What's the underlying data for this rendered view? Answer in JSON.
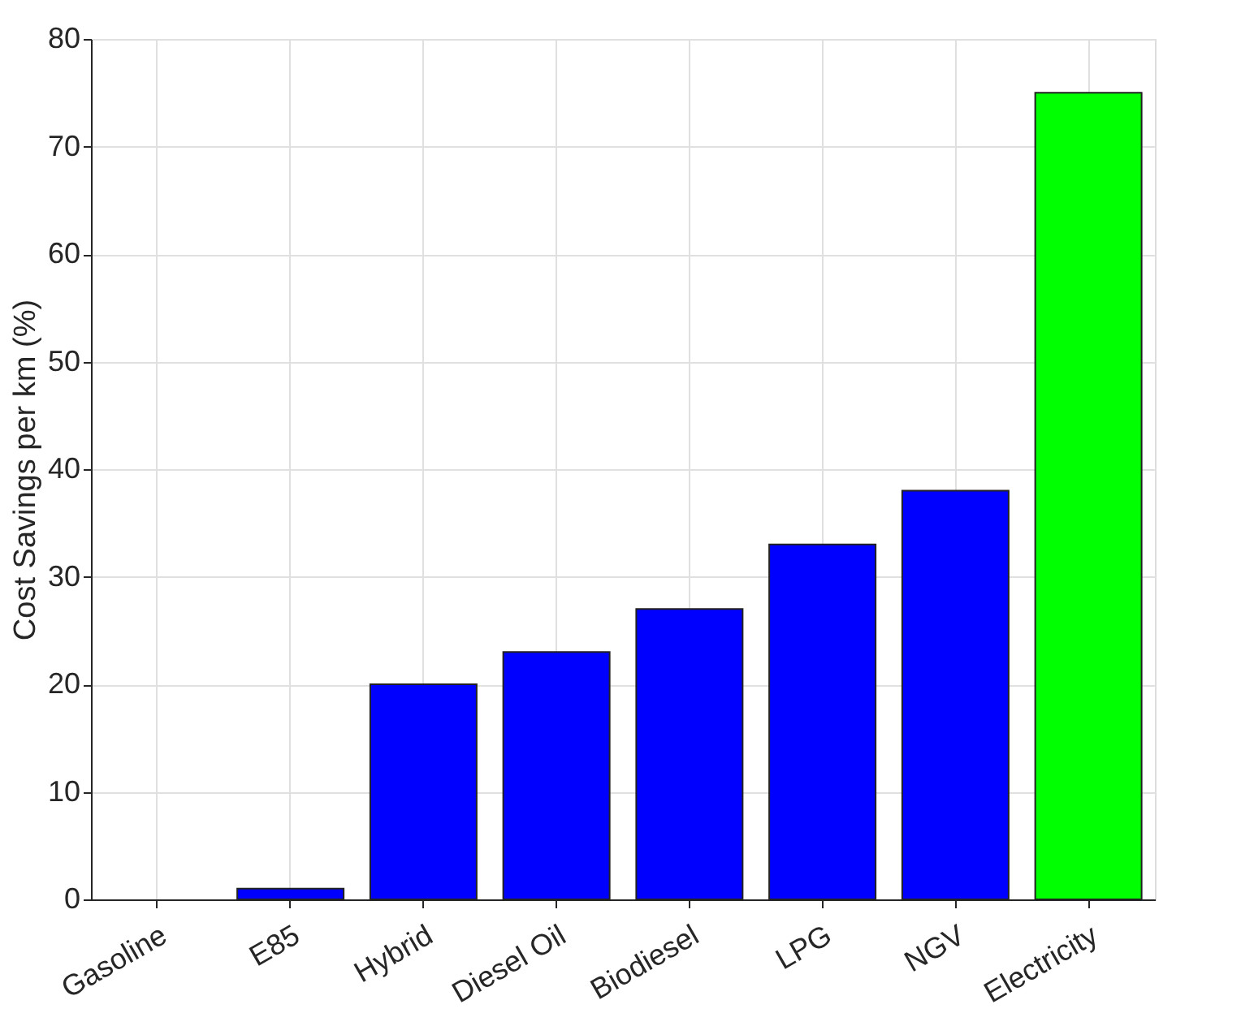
{
  "chart_data": {
    "type": "bar",
    "ylabel": "Cost Savings per km (%)",
    "categories": [
      "Gasoline",
      "E85",
      "Hybrid",
      "Diesel Oil",
      "Biodiesel",
      "LPG",
      "NGV",
      "Electricity"
    ],
    "values": [
      0,
      1,
      20,
      23,
      27,
      33,
      38,
      75
    ],
    "colors": [
      "#0000ff",
      "#0000ff",
      "#0000ff",
      "#0000ff",
      "#0000ff",
      "#0000ff",
      "#0000ff",
      "#00ff00"
    ],
    "ylim": [
      0,
      80
    ],
    "yticks": [
      0,
      10,
      20,
      30,
      40,
      50,
      60,
      70,
      80
    ],
    "grid": true
  }
}
